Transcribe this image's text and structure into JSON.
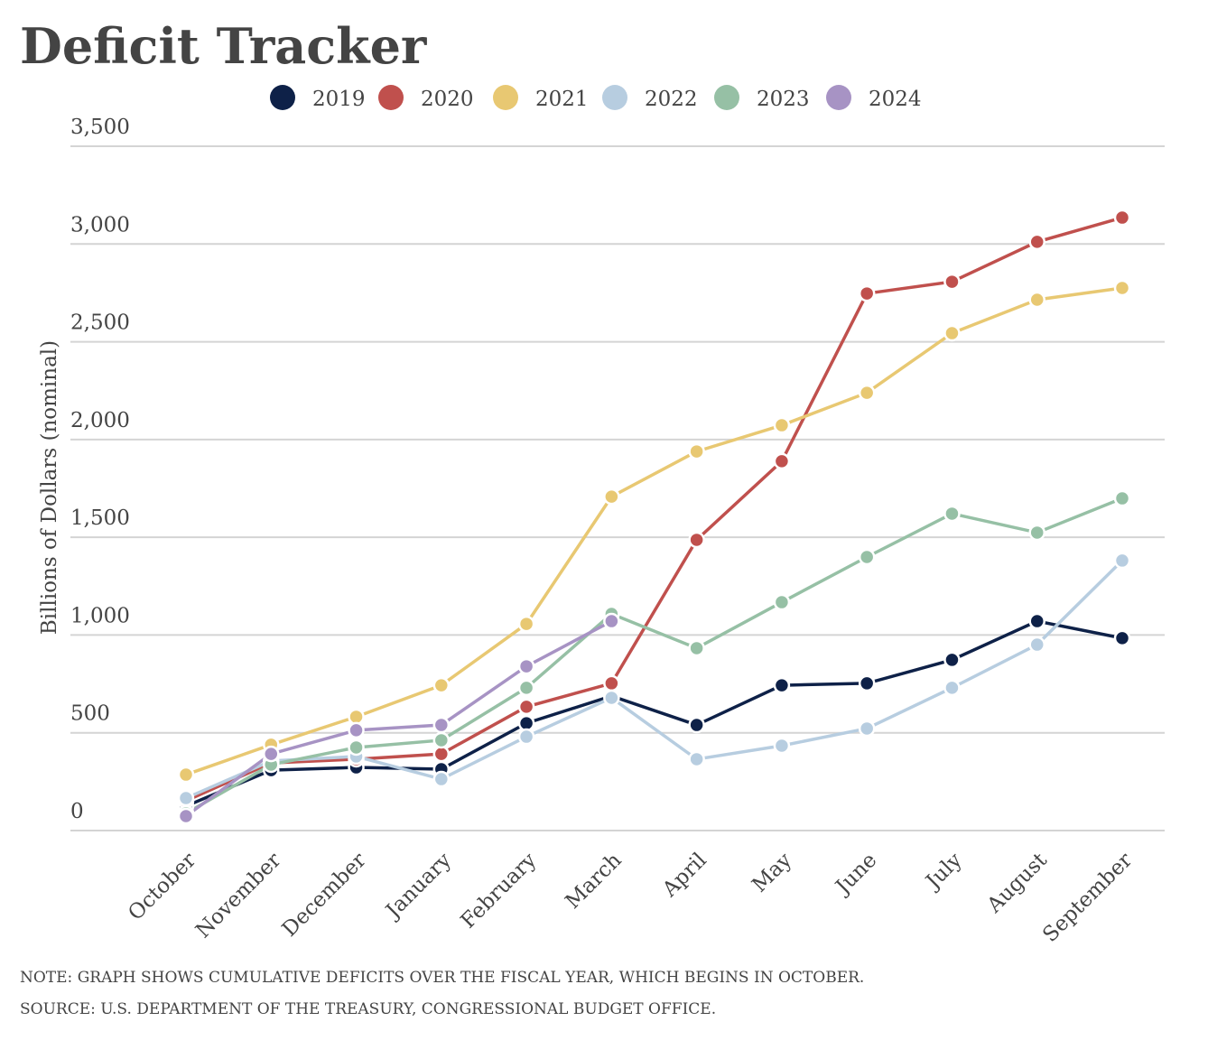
{
  "chart_data": {
    "type": "line",
    "title": "Deficit Tracker",
    "y_label": "Billions of Dollars (nominal)",
    "categories": [
      "October",
      "November",
      "December",
      "January",
      "February",
      "March",
      "April",
      "May",
      "June",
      "July",
      "August",
      "September"
    ],
    "series": [
      {
        "name": "2019",
        "color": "#0e2148",
        "values": [
          125,
          309,
          323,
          314,
          549,
          688,
          540,
          743,
          753,
          873,
          1071,
          984
        ]
      },
      {
        "name": "2020",
        "color": "#c0504d",
        "values": [
          152,
          346,
          365,
          392,
          633,
          753,
          1487,
          1889,
          2747,
          2807,
          3011,
          3135
        ]
      },
      {
        "name": "2021",
        "color": "#e8c872",
        "values": [
          286,
          439,
          582,
          743,
          1057,
          1708,
          1939,
          2073,
          2239,
          2544,
          2715,
          2775
        ]
      },
      {
        "name": "2022",
        "color": "#b7cde0",
        "values": [
          166,
          356,
          379,
          263,
          480,
          679,
          365,
          434,
          522,
          730,
          951,
          1381
        ]
      },
      {
        "name": "2023",
        "color": "#96c0a5",
        "values": [
          88,
          337,
          425,
          462,
          730,
          1108,
          933,
          1168,
          1399,
          1621,
          1524,
          1699
        ]
      },
      {
        "name": "2024",
        "color": "#a793c4",
        "values": [
          74,
          392,
          513,
          540,
          840,
          1071,
          null,
          null,
          null,
          null,
          null,
          null
        ]
      }
    ],
    "ylim": [
      0,
      3500
    ],
    "yticks": [
      0,
      500,
      {
        "value": 1000,
        "label": "1,000"
      },
      {
        "value": 1500,
        "label": "1,500"
      },
      {
        "value": 2000,
        "label": "2,000"
      },
      {
        "value": 2500,
        "label": "2,500"
      },
      {
        "value": 3000,
        "label": "3,000"
      },
      {
        "value": 3500,
        "label": "3,500"
      }
    ],
    "grid": true,
    "legend": "top",
    "note": "NOTE: GRAPH SHOWS CUMULATIVE DEFICITS OVER THE FISCAL YEAR, WHICH BEGINS IN OCTOBER.",
    "source": "SOURCE: U.S. DEPARTMENT OF THE TREASURY, CONGRESSIONAL BUDGET OFFICE."
  }
}
